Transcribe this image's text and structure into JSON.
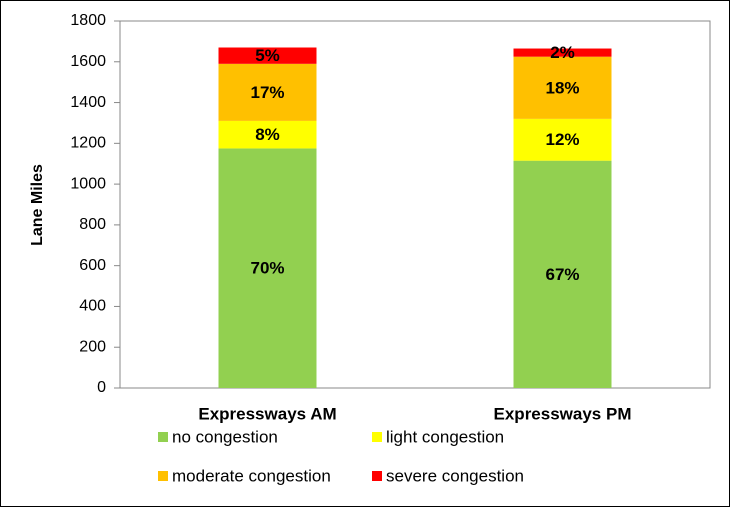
{
  "chart_data": {
    "type": "stacked_bar",
    "y_label": "Lane Miles",
    "categories": [
      "Expressways AM",
      "Expressways PM"
    ],
    "series": [
      {
        "name": "no congestion",
        "color": "#92d050",
        "values": [
          1175,
          1115
        ],
        "value_labels": [
          "70%",
          "67%"
        ]
      },
      {
        "name": "light congestion",
        "color": "#ffff00",
        "values": [
          135,
          205
        ],
        "value_labels": [
          "8%",
          "12%"
        ]
      },
      {
        "name": "moderate congestion",
        "color": "#ffc000",
        "values": [
          280,
          305
        ],
        "value_labels": [
          "17%",
          "18%"
        ]
      },
      {
        "name": "severe congestion",
        "color": "#ff0000",
        "values": [
          80,
          40
        ],
        "value_labels": [
          "5%",
          "2%"
        ]
      }
    ],
    "ylim": [
      0,
      1800
    ],
    "yticks": [
      0,
      200,
      400,
      600,
      800,
      1000,
      1200,
      1400,
      1600,
      1800
    ],
    "grid": false
  }
}
